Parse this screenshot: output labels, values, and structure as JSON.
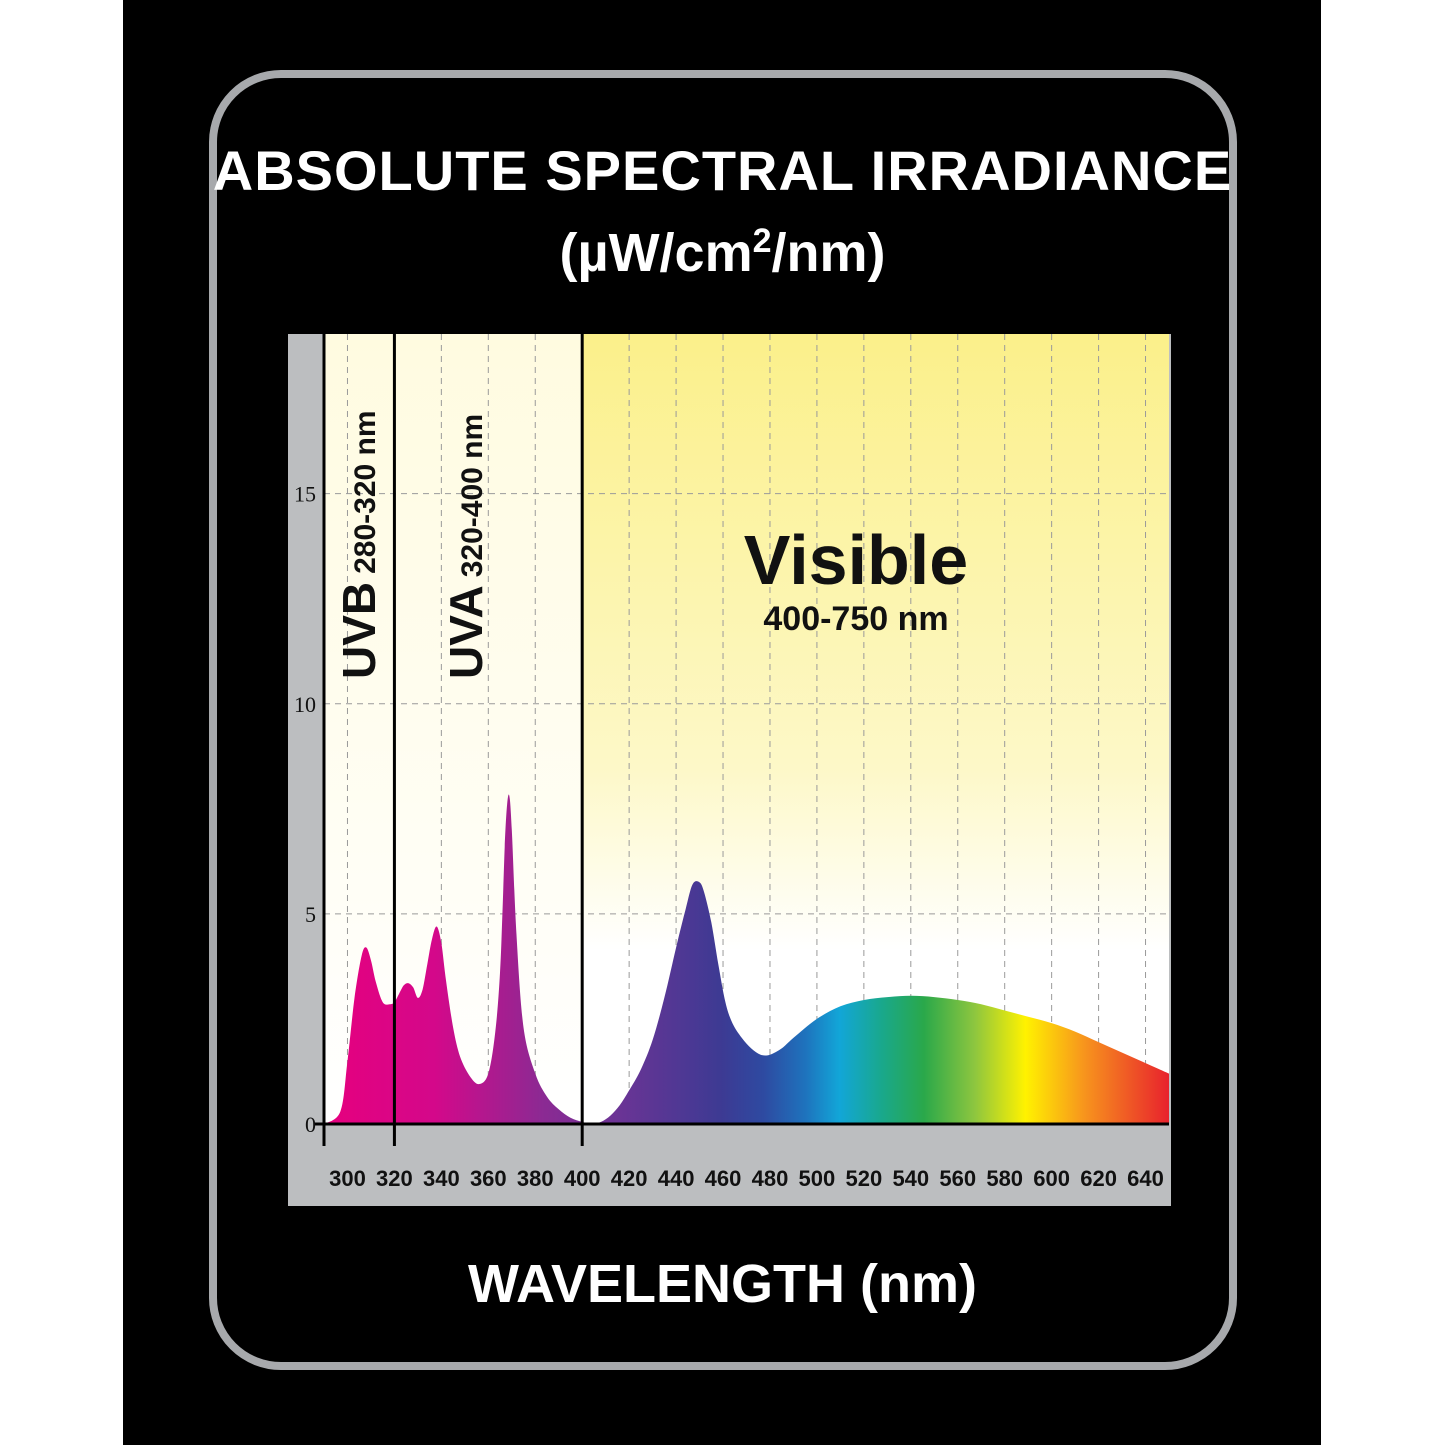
{
  "header": {
    "title": "ABSOLUTE SPECTRAL IRRADIANCE",
    "unit_prefix": "(µW/cm",
    "unit_sup": "2",
    "unit_suffix": "/nm)"
  },
  "footer": {
    "xlabel": "WAVELENGTH (nm)"
  },
  "colors": {
    "background": "#000000",
    "frame": "#a7a9ac",
    "chart_border": "#bcbec0",
    "plot_top": "#fbf08a",
    "plot_bottom": "#ffffff",
    "uv_band": "#fffbe0"
  },
  "chart_data": {
    "type": "area",
    "title": "ABSOLUTE SPECTRAL IRRADIANCE",
    "ylabel": "(µW/cm2/nm)",
    "xlabel": "WAVELENGTH (nm)",
    "xlim": [
      290,
      650
    ],
    "ylim": [
      0,
      18.8
    ],
    "x_ticks": [
      300,
      320,
      340,
      360,
      380,
      400,
      420,
      440,
      460,
      480,
      500,
      520,
      540,
      560,
      580,
      600,
      620,
      640
    ],
    "y_ticks": [
      0,
      5,
      10,
      15
    ],
    "grid": true,
    "bands": [
      {
        "name": "UVB",
        "range_label": "280-320 nm",
        "from": 290,
        "to": 320
      },
      {
        "name": "UVA",
        "range_label": "320-400 nm",
        "from": 320,
        "to": 400
      },
      {
        "name": "Visible",
        "range_label": "400-750 nm",
        "from": 400,
        "to": 650
      }
    ],
    "series": [
      {
        "x": [
          290,
          297,
          300,
          303,
          306,
          308,
          310,
          312,
          315,
          318,
          320,
          322,
          324,
          326,
          328,
          330,
          332,
          334,
          336,
          338,
          340,
          342,
          345,
          348,
          352,
          356,
          360,
          363,
          365,
          366,
          367,
          368,
          369,
          370,
          372,
          375,
          380,
          385,
          390,
          395,
          400,
          404,
          408,
          412,
          416,
          420,
          425,
          430,
          435,
          440,
          444,
          447,
          450,
          452,
          455,
          458,
          461,
          464,
          468,
          472,
          476,
          480,
          485,
          490,
          500,
          510,
          520,
          530,
          540,
          550,
          560,
          570,
          580,
          590,
          600,
          610,
          620,
          630,
          640,
          650
        ],
        "y": [
          0,
          0.3,
          1.5,
          3.0,
          4.0,
          4.2,
          3.9,
          3.4,
          2.9,
          2.85,
          2.9,
          3.1,
          3.3,
          3.35,
          3.25,
          3.0,
          3.2,
          3.8,
          4.4,
          4.7,
          4.3,
          3.4,
          2.3,
          1.6,
          1.15,
          0.95,
          1.2,
          2.2,
          3.6,
          5.0,
          6.6,
          7.6,
          7.8,
          7.0,
          4.5,
          2.3,
          1.2,
          0.65,
          0.35,
          0.15,
          0.05,
          0,
          0.05,
          0.2,
          0.45,
          0.8,
          1.3,
          2.0,
          3.0,
          4.2,
          5.1,
          5.7,
          5.75,
          5.5,
          4.8,
          3.8,
          2.9,
          2.4,
          2.05,
          1.8,
          1.65,
          1.65,
          1.8,
          2.05,
          2.5,
          2.8,
          2.95,
          3.02,
          3.05,
          3.02,
          2.95,
          2.85,
          2.7,
          2.55,
          2.4,
          2.2,
          1.95,
          1.7,
          1.45,
          1.2
        ]
      }
    ]
  }
}
